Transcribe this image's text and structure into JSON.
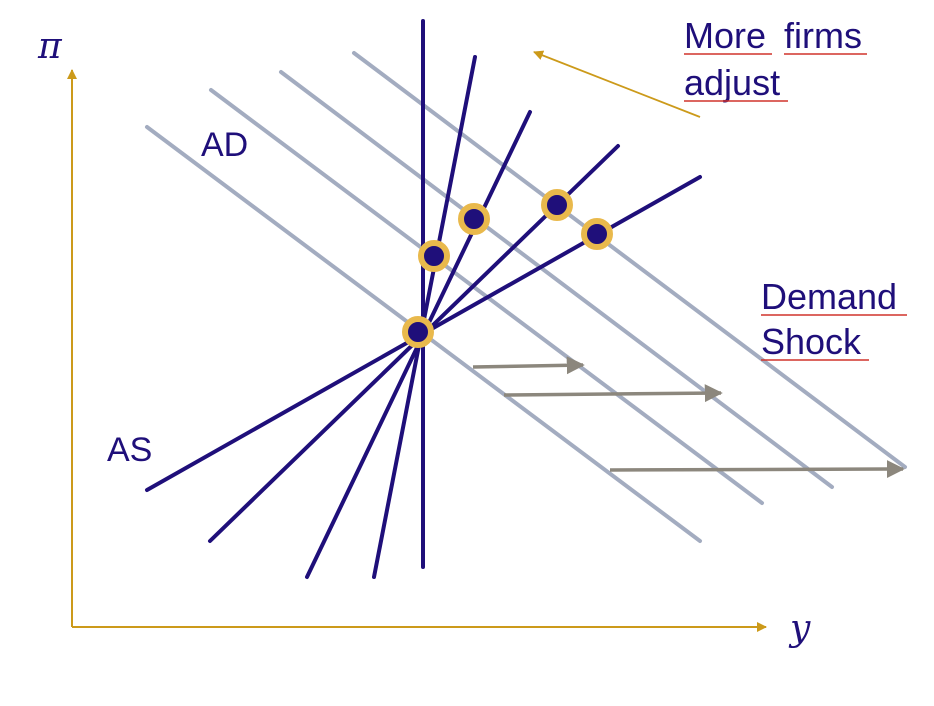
{
  "axes": {
    "y_axis_label": "π",
    "x_axis_label": "y"
  },
  "labels": {
    "ad": "AD",
    "as": "AS"
  },
  "annotations": {
    "firms_line1_word1": "More",
    "firms_line1_word2": "firms",
    "firms_line2": "adjust",
    "shock_line1": "Demand",
    "shock_line2": "Shock"
  },
  "colors": {
    "axis": "#cc9a1a",
    "as_curves": "#1f0f7a",
    "ad_curves": "#a3acc0",
    "shift_arrows": "#8c877d",
    "equilibrium_fill": "#1f0f7a",
    "equilibrium_ring": "#e9b94c",
    "text": "#1f0f7a",
    "link_underline": "#d0342c"
  }
}
